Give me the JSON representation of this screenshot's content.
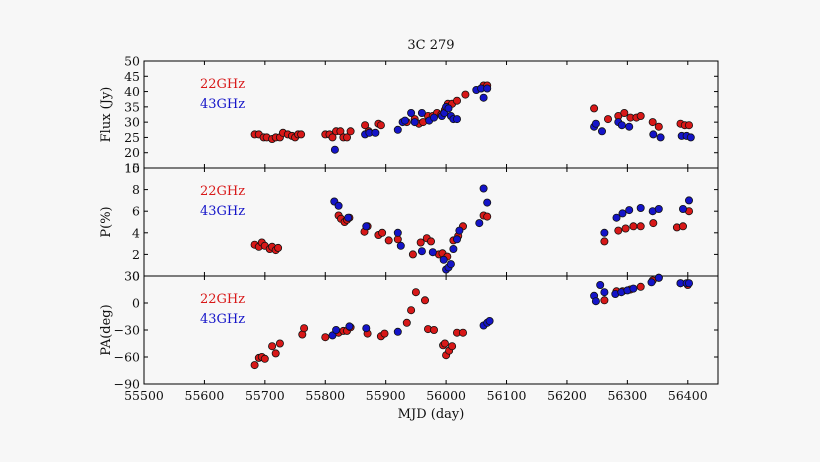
{
  "chart_data": {
    "type": "scatter",
    "title": "3C 279",
    "xlabel": "MJD (day)",
    "xlim": [
      55500,
      56450
    ],
    "xticks": [
      "55500",
      "55600",
      "55700",
      "55800",
      "55900",
      "56000",
      "56100",
      "56200",
      "56300",
      "56400"
    ],
    "colors": {
      "22GHz": "#d81818",
      "43GHz": "#1414c8"
    },
    "panels": [
      {
        "ylabel": "Flux (Jy)",
        "ylim": [
          15,
          50
        ],
        "yticks": [
          "15",
          "20",
          "25",
          "30",
          "35",
          "40",
          "45",
          "50"
        ],
        "legend": [
          "22GHz",
          "43GHz"
        ],
        "series": [
          {
            "name": "22GHz",
            "points": [
              [
                55683,
                26
              ],
              [
                55690,
                26
              ],
              [
                55698,
                25
              ],
              [
                55703,
                25
              ],
              [
                55712,
                24.5
              ],
              [
                55718,
                25
              ],
              [
                55725,
                25
              ],
              [
                55730,
                26.5
              ],
              [
                55738,
                26
              ],
              [
                55745,
                25.5
              ],
              [
                55750,
                25
              ],
              [
                55755,
                26
              ],
              [
                55760,
                26
              ],
              [
                55800,
                26
              ],
              [
                55807,
                26
              ],
              [
                55812,
                25
              ],
              [
                55818,
                27
              ],
              [
                55825,
                27
              ],
              [
                55830,
                25
              ],
              [
                55836,
                25
              ],
              [
                55842,
                27
              ],
              [
                55866,
                29
              ],
              [
                55872,
                27
              ],
              [
                55888,
                29.5
              ],
              [
                55892,
                29
              ],
              [
                55935,
                30
              ],
              [
                55948,
                31
              ],
              [
                55955,
                29.5
              ],
              [
                55962,
                30
              ],
              [
                55970,
                32
              ],
              [
                55978,
                32
              ],
              [
                55985,
                33
              ],
              [
                55992,
                32.5
              ],
              [
                55998,
                34
              ],
              [
                56003,
                36
              ],
              [
                56010,
                36
              ],
              [
                56018,
                37
              ],
              [
                56032,
                39
              ],
              [
                56062,
                42
              ],
              [
                56068,
                42
              ],
              [
                56245,
                34.5
              ],
              [
                56268,
                31
              ],
              [
                56285,
                32
              ],
              [
                56295,
                33
              ],
              [
                56305,
                31.5
              ],
              [
                56315,
                31.5
              ],
              [
                56322,
                32
              ],
              [
                56342,
                30
              ],
              [
                56352,
                28.5
              ],
              [
                56388,
                29.5
              ],
              [
                56395,
                29
              ],
              [
                56402,
                29
              ]
            ]
          },
          {
            "name": "43GHz",
            "points": [
              [
                55816,
                21
              ],
              [
                55866,
                26
              ],
              [
                55873,
                26.5
              ],
              [
                55883,
                26.5
              ],
              [
                55920,
                27.5
              ],
              [
                55928,
                30
              ],
              [
                55932,
                30.5
              ],
              [
                55942,
                33
              ],
              [
                55948,
                30
              ],
              [
                55960,
                33
              ],
              [
                55972,
                30.5
              ],
              [
                55980,
                31.5
              ],
              [
                55993,
                32
              ],
              [
                55997,
                33
              ],
              [
                56000,
                35
              ],
              [
                56004,
                34.5
              ],
              [
                56008,
                32
              ],
              [
                56012,
                31
              ],
              [
                56018,
                31
              ],
              [
                56050,
                40.5
              ],
              [
                56058,
                41
              ],
              [
                56062,
                38
              ],
              [
                56068,
                41
              ],
              [
                56245,
                28.5
              ],
              [
                56248,
                29.5
              ],
              [
                56258,
                27
              ],
              [
                56285,
                30
              ],
              [
                56291,
                29
              ],
              [
                56303,
                28.5
              ],
              [
                56343,
                26
              ],
              [
                56355,
                25
              ],
              [
                56390,
                25.5
              ],
              [
                56398,
                25.5
              ],
              [
                56405,
                25
              ]
            ]
          }
        ]
      },
      {
        "ylabel": "P(%)",
        "ylim": [
          0,
          10
        ],
        "yticks": [
          "0",
          "2",
          "4",
          "6",
          "8",
          "10"
        ],
        "legend": [
          "22GHz",
          "43GHz"
        ],
        "series": [
          {
            "name": "22GHz",
            "points": [
              [
                55683,
                2.9
              ],
              [
                55690,
                2.7
              ],
              [
                55695,
                3.1
              ],
              [
                55700,
                2.8
              ],
              [
                55708,
                2.5
              ],
              [
                55712,
                2.7
              ],
              [
                55718,
                2.4
              ],
              [
                55722,
                2.6
              ],
              [
                55822,
                5.6
              ],
              [
                55826,
                5.3
              ],
              [
                55832,
                5.0
              ],
              [
                55836,
                5.2
              ],
              [
                55840,
                5.4
              ],
              [
                55865,
                4.1
              ],
              [
                55870,
                4.6
              ],
              [
                55888,
                3.8
              ],
              [
                55894,
                4.0
              ],
              [
                55905,
                3.3
              ],
              [
                55920,
                3.4
              ],
              [
                55945,
                2.0
              ],
              [
                55958,
                3.1
              ],
              [
                55968,
                3.5
              ],
              [
                55975,
                3.2
              ],
              [
                55988,
                2.0
              ],
              [
                55994,
                2.1
              ],
              [
                56002,
                1.8
              ],
              [
                56012,
                3.3
              ],
              [
                56020,
                3.7
              ],
              [
                56028,
                4.6
              ],
              [
                56062,
                5.6
              ],
              [
                56068,
                5.5
              ],
              [
                56262,
                3.2
              ],
              [
                56285,
                4.2
              ],
              [
                56297,
                4.4
              ],
              [
                56310,
                4.6
              ],
              [
                56322,
                4.6
              ],
              [
                56343,
                4.9
              ],
              [
                56382,
                4.5
              ],
              [
                56392,
                4.6
              ],
              [
                56402,
                6.0
              ]
            ]
          },
          {
            "name": "43GHz",
            "points": [
              [
                55815,
                6.9
              ],
              [
                55822,
                6.5
              ],
              [
                55838,
                5.4
              ],
              [
                55868,
                4.6
              ],
              [
                55920,
                4.0
              ],
              [
                55925,
                2.8
              ],
              [
                55960,
                2.3
              ],
              [
                55978,
                2.2
              ],
              [
                55996,
                1.5
              ],
              [
                56000,
                0.6
              ],
              [
                56004,
                0.8
              ],
              [
                56008,
                1.1
              ],
              [
                56012,
                2.5
              ],
              [
                56018,
                3.4
              ],
              [
                56022,
                4.2
              ],
              [
                56055,
                4.9
              ],
              [
                56062,
                8.1
              ],
              [
                56068,
                6.8
              ],
              [
                56262,
                4.0
              ],
              [
                56282,
                5.4
              ],
              [
                56292,
                5.8
              ],
              [
                56303,
                6.1
              ],
              [
                56322,
                6.3
              ],
              [
                56342,
                6.0
              ],
              [
                56352,
                6.2
              ],
              [
                56392,
                6.2
              ],
              [
                56402,
                7.0
              ]
            ]
          }
        ]
      },
      {
        "ylabel": "PA(deg)",
        "ylim": [
          -90,
          30
        ],
        "yticks": [
          "−90",
          "−60",
          "−30",
          "0",
          "30"
        ],
        "legend": [
          "22GHz",
          "43GHz"
        ],
        "series": [
          {
            "name": "22GHz",
            "points": [
              [
                55683,
                -69
              ],
              [
                55690,
                -61
              ],
              [
                55695,
                -60
              ],
              [
                55700,
                -62
              ],
              [
                55712,
                -48
              ],
              [
                55718,
                -56
              ],
              [
                55725,
                -45
              ],
              [
                55762,
                -35
              ],
              [
                55765,
                -28
              ],
              [
                55800,
                -38
              ],
              [
                55822,
                -33
              ],
              [
                55830,
                -31
              ],
              [
                55836,
                -31
              ],
              [
                55842,
                -27
              ],
              [
                55870,
                -34
              ],
              [
                55892,
                -37
              ],
              [
                55898,
                -34
              ],
              [
                55935,
                -22
              ],
              [
                55942,
                -8
              ],
              [
                55950,
                12
              ],
              [
                55965,
                3
              ],
              [
                55970,
                -29
              ],
              [
                55980,
                -30
              ],
              [
                55995,
                -47
              ],
              [
                55998,
                -45
              ],
              [
                56000,
                -58
              ],
              [
                56005,
                -53
              ],
              [
                56010,
                -48
              ],
              [
                56018,
                -33
              ],
              [
                56028,
                -33
              ],
              [
                56262,
                3
              ],
              [
                56282,
                13
              ],
              [
                56292,
                13
              ],
              [
                56305,
                15
              ],
              [
                56322,
                18
              ],
              [
                56342,
                25
              ],
              [
                56352,
                28
              ],
              [
                56388,
                22
              ],
              [
                56400,
                20
              ]
            ]
          },
          {
            "name": "43GHz",
            "points": [
              [
                55812,
                -36
              ],
              [
                55818,
                -30
              ],
              [
                55840,
                -26
              ],
              [
                55868,
                -28
              ],
              [
                55920,
                -32
              ],
              [
                56062,
                -25
              ],
              [
                56068,
                -22
              ],
              [
                56072,
                -20
              ],
              [
                56245,
                8
              ],
              [
                56248,
                2
              ],
              [
                56255,
                20
              ],
              [
                56262,
                12
              ],
              [
                56280,
                10
              ],
              [
                56290,
                12
              ],
              [
                56300,
                14
              ],
              [
                56310,
                16
              ],
              [
                56340,
                23
              ],
              [
                56352,
                28
              ],
              [
                56388,
                22
              ],
              [
                56398,
                22
              ],
              [
                56402,
                22
              ]
            ]
          }
        ]
      }
    ]
  }
}
